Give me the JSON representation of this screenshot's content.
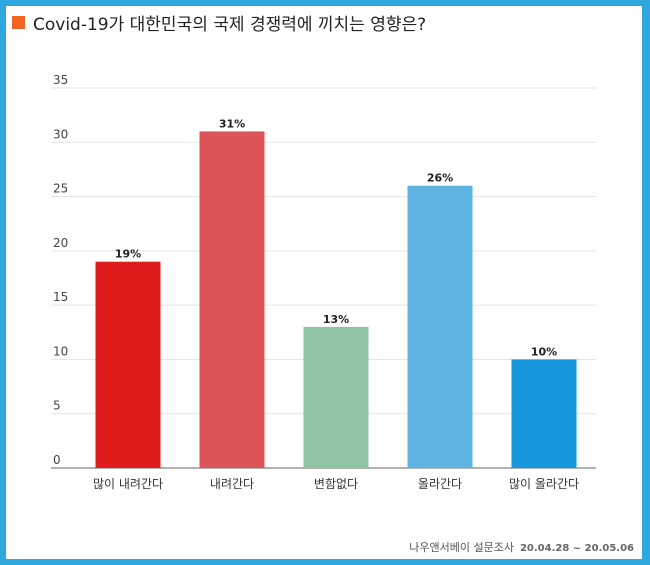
{
  "title": "Covid-19가 대한민국의 국제 경쟁력에 끼치는 영향은?",
  "colors": {
    "title_marker": "#f26522",
    "grid": "#e3e3e3",
    "axis": "#999999"
  },
  "source": {
    "text": "나우앤서베이 설문조사",
    "dates": "20.04.28 ~ 20.05.06"
  },
  "chart_data": {
    "type": "bar",
    "title": "Covid-19가 대한민국의 국제 경쟁력에 끼치는 영향은?",
    "categories": [
      "많이 내려간다",
      "내려간다",
      "변함없다",
      "올라간다",
      "많이 올라간다"
    ],
    "values": [
      19,
      31,
      13,
      26,
      10
    ],
    "data_labels": [
      "19%",
      "31%",
      "13%",
      "26%",
      "10%"
    ],
    "bar_colors": [
      "#e01b1b",
      "#dc5458",
      "#8fc5a4",
      "#5db4e3",
      "#1598de"
    ],
    "yticks": [
      0,
      5,
      10,
      15,
      20,
      25,
      30,
      35
    ],
    "ylim": [
      0,
      35
    ],
    "grid": true,
    "legend": "none"
  }
}
